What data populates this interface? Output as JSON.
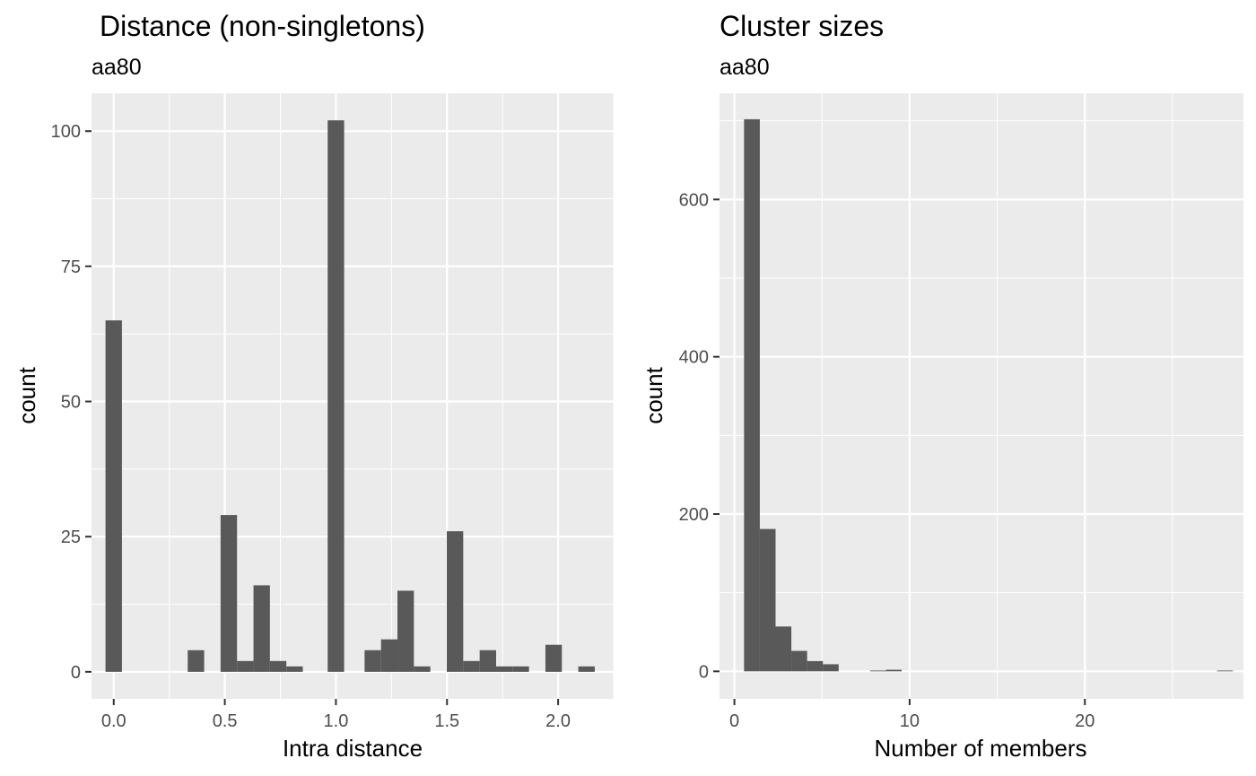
{
  "chart_data": [
    {
      "type": "bar",
      "title": "Distance (non-singletons)",
      "subtitle": "aa80",
      "xlabel": "Intra distance",
      "ylabel": "count",
      "xlim": [
        -0.1,
        2.25
      ],
      "ylim": [
        -5,
        107
      ],
      "x_ticks": [
        0.0,
        0.5,
        1.0,
        1.5,
        2.0
      ],
      "x_tick_labels": [
        "0.0",
        "0.5",
        "1.0",
        "1.5",
        "2.0"
      ],
      "y_ticks": [
        0,
        25,
        50,
        75,
        100
      ],
      "y_tick_labels": [
        "0",
        "25",
        "50",
        "75",
        "100"
      ],
      "grid": true,
      "bin_width": 0.074,
      "bar_color": "#595959",
      "panel_color": "#ebebeb",
      "x": [
        0.0,
        0.37,
        0.518,
        0.592,
        0.666,
        0.74,
        0.814,
        1.0,
        1.166,
        1.24,
        1.314,
        1.388,
        1.536,
        1.61,
        1.684,
        1.758,
        1.832,
        1.98,
        2.128
      ],
      "values": [
        65,
        4,
        29,
        2,
        16,
        2,
        1,
        102,
        4,
        6,
        15,
        1,
        26,
        2,
        4,
        1,
        1,
        5,
        1
      ]
    },
    {
      "type": "bar",
      "title": "Cluster sizes",
      "subtitle": "aa80",
      "xlabel": "Number of members",
      "ylabel": "count",
      "xlim": [
        -0.85,
        29.05
      ],
      "ylim": [
        -35,
        735
      ],
      "x_ticks": [
        0,
        10,
        20
      ],
      "x_tick_labels": [
        "0",
        "10",
        "20"
      ],
      "y_ticks": [
        0,
        200,
        400,
        600
      ],
      "y_tick_labels": [
        "0",
        "200",
        "400",
        "600"
      ],
      "grid": true,
      "bin_width": 0.9,
      "bar_color": "#595959",
      "panel_color": "#ebebeb",
      "x": [
        1.0,
        1.9,
        2.8,
        3.7,
        4.6,
        5.5,
        8.2,
        9.1,
        28.0
      ],
      "values": [
        702,
        181,
        57,
        26,
        13,
        9,
        1,
        2,
        1
      ]
    }
  ]
}
